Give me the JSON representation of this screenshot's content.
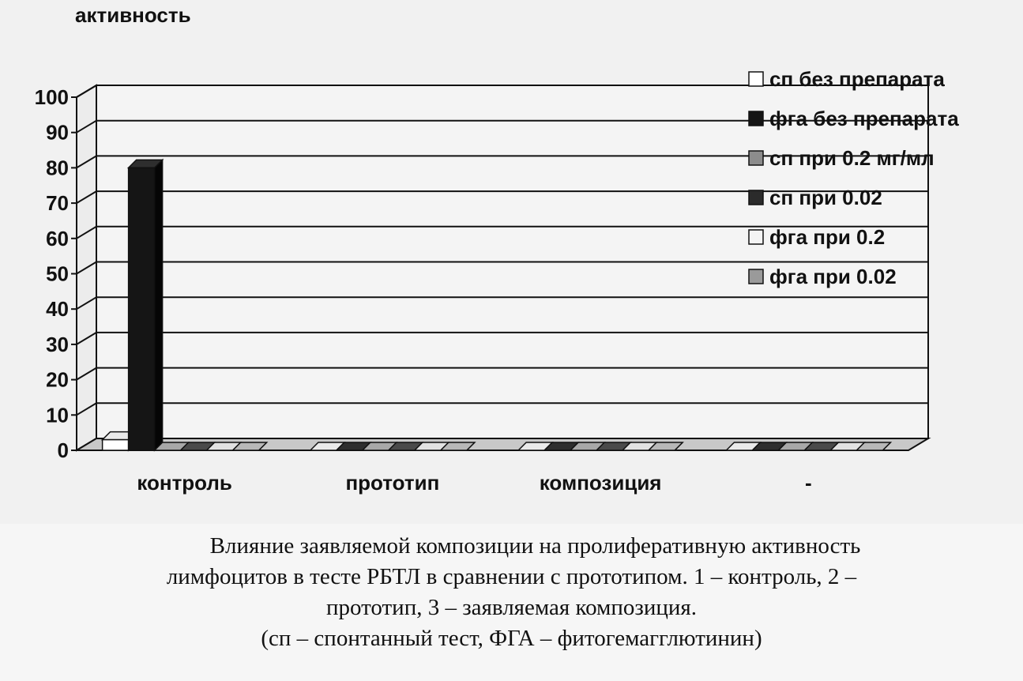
{
  "chart_data": {
    "type": "bar",
    "title": "",
    "ylabel": "активность",
    "xlabel": "",
    "ylim": [
      0,
      100
    ],
    "yticks": [
      0,
      10,
      20,
      30,
      40,
      50,
      60,
      70,
      80,
      90,
      100
    ],
    "grid": true,
    "legend_position": "right",
    "categories": [
      "контроль",
      "прототип",
      "композиция",
      "-"
    ],
    "series": [
      {
        "name": "сп без препарата",
        "values": [
          3,
          0,
          0,
          0
        ],
        "color": "#ffffff",
        "side": "#d8d8d8",
        "top": "#eaeaea"
      },
      {
        "name": "фга без препарата",
        "values": [
          80,
          0,
          0,
          0
        ],
        "color": "#151515",
        "side": "#050505",
        "top": "#2e2e2e"
      },
      {
        "name": "сп при 0.2 мг/мл",
        "values": [
          0,
          0,
          0,
          0
        ],
        "color": "#8c8c8c",
        "side": "#5f5f5f",
        "top": "#a8a8a8"
      },
      {
        "name": "сп при 0.02",
        "values": [
          0,
          0,
          0,
          0
        ],
        "color": "#2b2b2b",
        "side": "#141414",
        "top": "#4a4a4a"
      },
      {
        "name": "фга при 0.2",
        "values": [
          0,
          0,
          0,
          0
        ],
        "color": "#f4f4f4",
        "side": "#bdbdbd",
        "top": "#e2e2e2"
      },
      {
        "name": "фга при 0.02",
        "values": [
          0,
          0,
          0,
          0
        ],
        "color": "#9a9a9a",
        "side": "#6a6a6a",
        "top": "#b8b8b8"
      }
    ]
  },
  "caption": {
    "line1": "Влияние заявляемой композиции на пролиферативную активность",
    "line2": "лимфоцитов в тесте РБТЛ в сравнении с прототипом. 1 – контроль, 2 –",
    "line3": "прототип, 3 – заявляемая композиция.",
    "line4": "(сп – спонтанный тест, ФГА – фитогемагглютинин)"
  }
}
